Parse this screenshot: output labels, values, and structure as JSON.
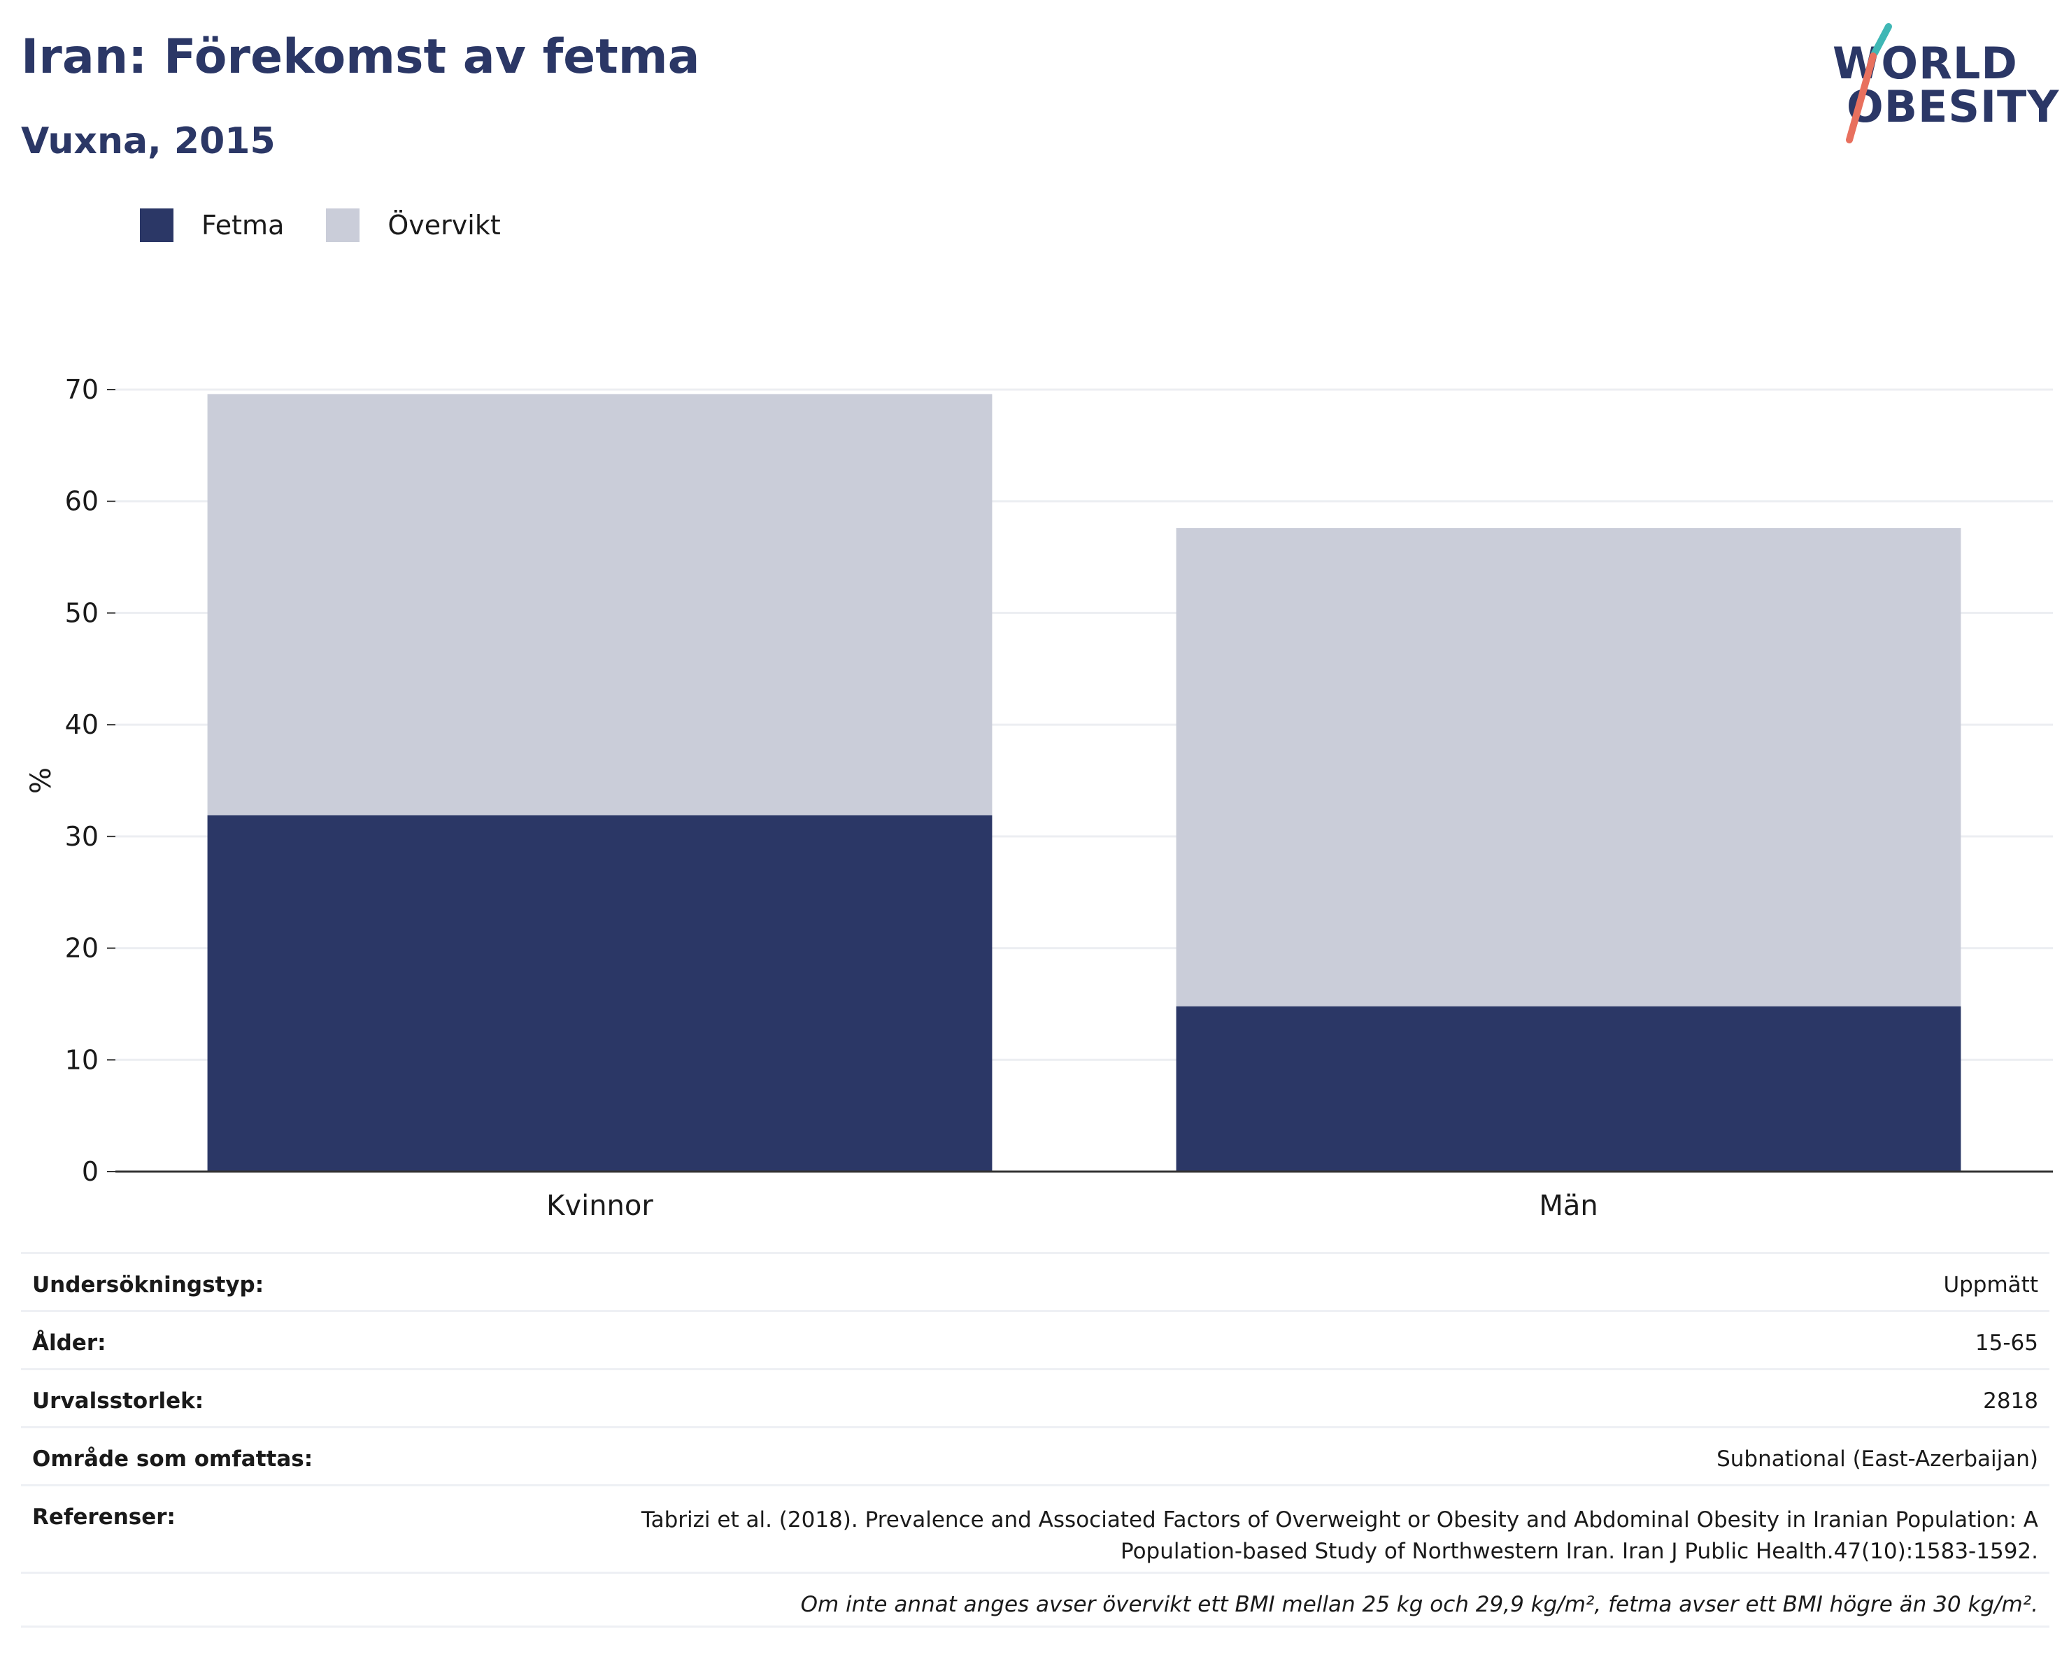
{
  "title": "Iran: Förekomst av fetma",
  "subtitle": "Vuxna, 2015",
  "logo": {
    "line1": "WORLD",
    "line2": "OBESITY",
    "accent_teal": "#3fb7b5",
    "accent_coral": "#e8705e"
  },
  "colors": {
    "fetma": "#2b3766",
    "overvikt": "#cacdd9",
    "grid": "#eceef2",
    "axis": "#333333",
    "text_dark": "#2b3766"
  },
  "chart_data": {
    "type": "bar",
    "stacked": true,
    "categories": [
      "Kvinnor",
      "Män"
    ],
    "series": [
      {
        "name": "Fetma",
        "values": [
          31.9,
          14.8
        ]
      },
      {
        "name": "Övervikt",
        "values": [
          37.7,
          42.8
        ]
      }
    ],
    "ylabel": "%",
    "ylim": [
      0,
      70
    ],
    "yticks": [
      0,
      10,
      20,
      30,
      40,
      50,
      60,
      70
    ],
    "grid": true,
    "legend": "top-left"
  },
  "info": [
    {
      "label": "Undersökningstyp:",
      "value": "Uppmätt"
    },
    {
      "label": "Ålder:",
      "value": "15-65"
    },
    {
      "label": "Urvalsstorlek:",
      "value": "2818"
    },
    {
      "label": "Område som omfattas:",
      "value": "Subnational (East-Azerbaijan)"
    },
    {
      "label": "Referenser:",
      "value": "Tabrizi et al. (2018). Prevalence and Associated Factors of Overweight or Obesity and Abdominal Obesity in Iranian Population: A Population-based Study of Northwestern Iran. Iran J Public Health.47(10):1583-1592."
    }
  ],
  "note": "Om inte annat anges avser övervikt ett BMI mellan 25 kg och 29,9 kg/m², fetma avser ett BMI högre än 30 kg/m²."
}
